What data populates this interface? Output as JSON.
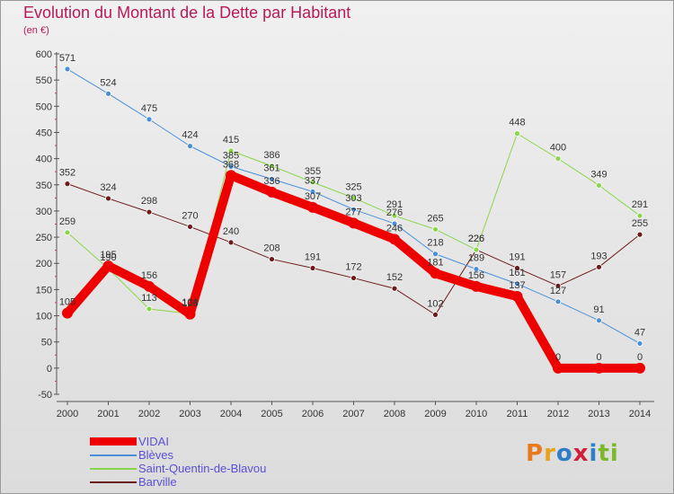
{
  "title": "Evolution du Montant de la Dette par Habitant",
  "subtitle": "(en €)",
  "logo": {
    "text": "Proxiti",
    "letter_colors": [
      "#e87a1c",
      "#e8a21c",
      "#2f7fc6",
      "#d11f3a",
      "#2f7fc6",
      "#7bb92a",
      "#7bb92a"
    ]
  },
  "chart_data": {
    "type": "line",
    "title": "Evolution du Montant de la Dette par Habitant",
    "ylabel": "(en €)",
    "x": [
      "2000",
      "2001",
      "2002",
      "2003",
      "2004",
      "2005",
      "2006",
      "2007",
      "2008",
      "2009",
      "2010",
      "2011",
      "2012",
      "2013",
      "2014"
    ],
    "ylim": [
      -50,
      600
    ],
    "yticks": [
      -50,
      0,
      50,
      100,
      150,
      200,
      250,
      300,
      350,
      400,
      450,
      500,
      550,
      600
    ],
    "grid": false,
    "legend_position": "bottom-left",
    "series": [
      {
        "name": "Barville",
        "color": "#6e1a1a",
        "width": 1,
        "values": [
          352,
          324,
          298,
          270,
          240,
          208,
          191,
          172,
          152,
          102,
          226,
          191,
          157,
          193,
          255
        ]
      },
      {
        "name": "Saint-Quentin-de-Blavou",
        "color": "#8ad64a",
        "width": 1,
        "values": [
          259,
          190,
          113,
          104,
          415,
          386,
          355,
          325,
          291,
          265,
          226,
          448,
          400,
          349,
          291
        ]
      },
      {
        "name": "Blèves",
        "color": "#4a90d9",
        "width": 1,
        "values": [
          571,
          524,
          475,
          424,
          385,
          361,
          337,
          303,
          276,
          218,
          189,
          161,
          127,
          91,
          47
        ]
      },
      {
        "name": "VIDAI",
        "color": "#ee0000",
        "width": 10,
        "values": [
          105,
          195,
          156,
          103,
          368,
          336,
          307,
          277,
          246,
          181,
          156,
          137,
          0,
          0,
          0
        ]
      }
    ],
    "data_labels": [
      [
        "352",
        "324",
        "298",
        "270",
        "240",
        "208",
        "191",
        "172",
        "152",
        "102",
        "226",
        "191",
        "157",
        "193",
        "255"
      ],
      [
        "259",
        "190",
        "113",
        "104",
        "415",
        "386",
        "355",
        "325",
        "291",
        "265",
        "226",
        "448",
        "400",
        "349",
        "291"
      ],
      [
        "571",
        "524",
        "475",
        "424",
        "385",
        "361",
        "337",
        "303",
        "276",
        "218",
        "189",
        "161",
        "127",
        "91",
        "47"
      ],
      [
        "105",
        "195",
        "156",
        "103",
        "368",
        "336",
        "307",
        "277",
        "246",
        "181",
        "156",
        "137",
        "0",
        "0",
        "0"
      ]
    ]
  },
  "legend": [
    {
      "label": "VIDAI",
      "color": "#ee0000",
      "thick": true
    },
    {
      "label": "Blèves",
      "color": "#4a90d9",
      "thick": false
    },
    {
      "label": "Saint-Quentin-de-Blavou",
      "color": "#8ad64a",
      "thick": false
    },
    {
      "label": "Barville",
      "color": "#6e1a1a",
      "thick": false
    }
  ]
}
